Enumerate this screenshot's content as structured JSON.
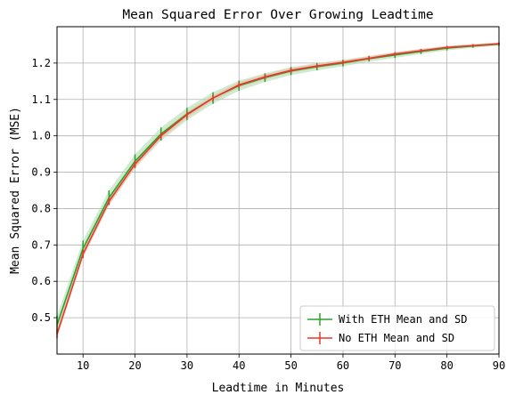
{
  "chart_data": {
    "type": "line",
    "title": "Mean Squared Error Over Growing Leadtime",
    "xlabel": "Leadtime in Minutes",
    "ylabel": "Mean Squared Error (MSE)",
    "xlim": [
      5,
      90
    ],
    "ylim": [
      0.4,
      1.3
    ],
    "xticks": [
      10,
      20,
      30,
      40,
      50,
      60,
      70,
      80,
      90
    ],
    "yticks": [
      0.5,
      0.6,
      0.7,
      0.8,
      0.9,
      1.0,
      1.1,
      1.2
    ],
    "ytick_labels": [
      "0.5",
      "0.6",
      "0.7",
      "0.8",
      "0.9",
      "1.0",
      "1.1",
      "1.2"
    ],
    "grid": true,
    "legend_position": "bottom-right",
    "x": [
      5,
      10,
      15,
      20,
      25,
      30,
      35,
      40,
      45,
      50,
      55,
      60,
      65,
      70,
      75,
      80,
      85,
      90
    ],
    "series": [
      {
        "name": "With ETH Mean and SD",
        "color": "#2ca02c",
        "band_color": "#a8dba8",
        "values": [
          0.48,
          0.69,
          0.83,
          0.93,
          1.005,
          1.06,
          1.104,
          1.138,
          1.16,
          1.178,
          1.19,
          1.2,
          1.212,
          1.222,
          1.232,
          1.241,
          1.247,
          1.252
        ],
        "sd": [
          0.025,
          0.022,
          0.02,
          0.019,
          0.018,
          0.017,
          0.016,
          0.014,
          0.012,
          0.011,
          0.01,
          0.009,
          0.008,
          0.008,
          0.007,
          0.006,
          0.005,
          0.004
        ]
      },
      {
        "name": "No ETH Mean and SD",
        "color": "#e8382a",
        "band_color": "#f3b8a8",
        "values": [
          0.455,
          0.675,
          0.82,
          0.922,
          1.0,
          1.058,
          1.104,
          1.14,
          1.162,
          1.18,
          1.192,
          1.202,
          1.213,
          1.225,
          1.234,
          1.243,
          1.248,
          1.253
        ],
        "sd": [
          0.012,
          0.011,
          0.01,
          0.01,
          0.009,
          0.009,
          0.008,
          0.008,
          0.007,
          0.007,
          0.006,
          0.006,
          0.005,
          0.005,
          0.005,
          0.004,
          0.004,
          0.004
        ]
      }
    ]
  }
}
